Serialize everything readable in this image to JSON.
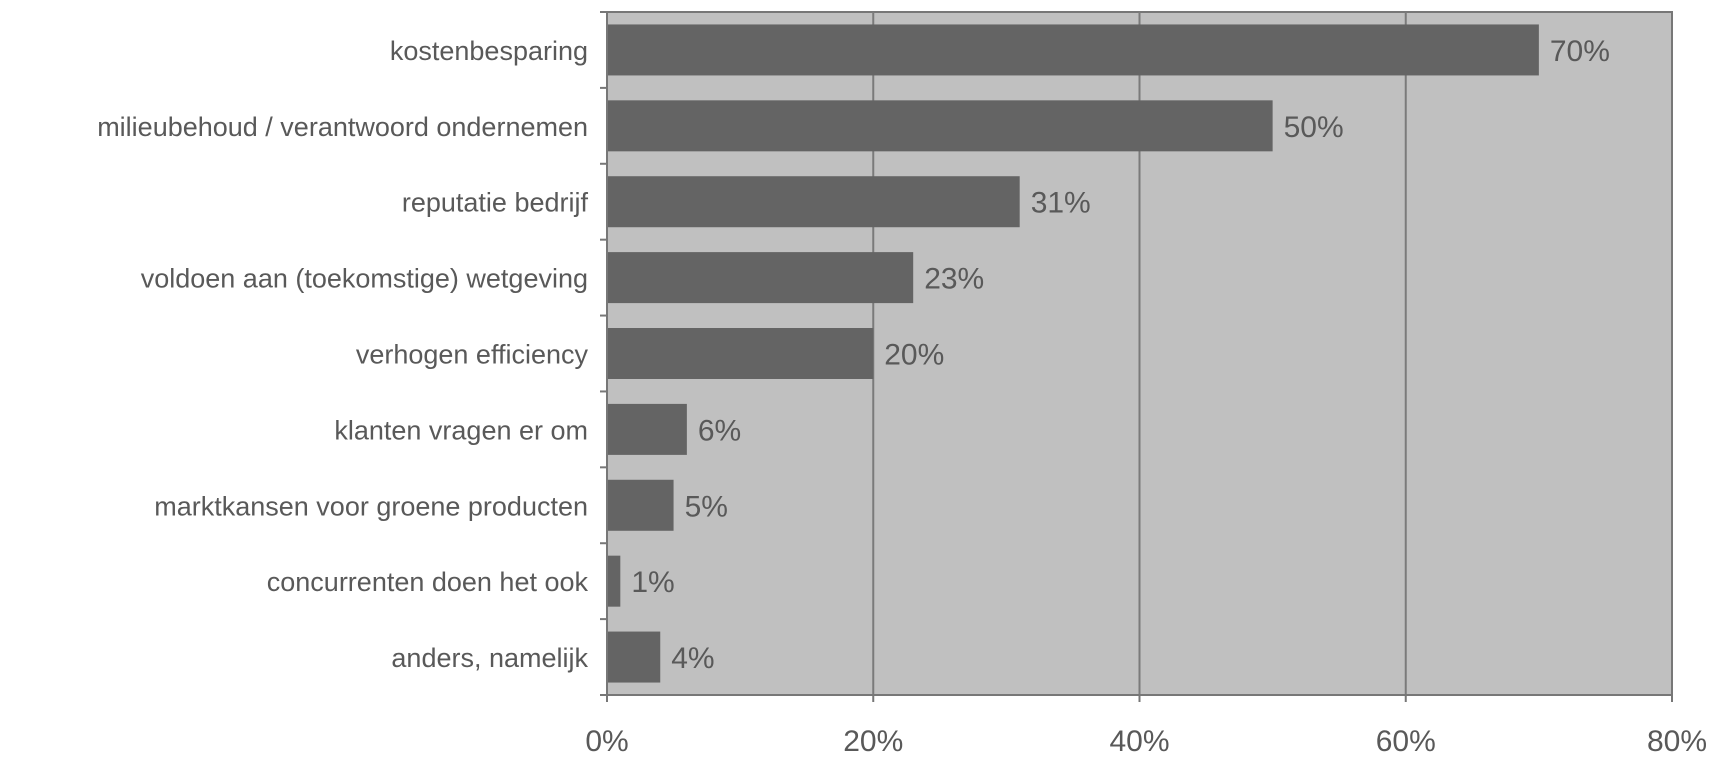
{
  "chart_data": {
    "type": "bar",
    "orientation": "horizontal",
    "categories": [
      "kostenbesparing",
      "milieubehoud / verantwoord ondernemen",
      "reputatie bedrijf",
      "voldoen aan (toekomstige) wetgeving",
      "verhogen efficiency",
      "klanten vragen er om",
      "marktkansen voor groene producten",
      "concurrenten doen het ook",
      "anders, namelijk"
    ],
    "values": [
      70,
      50,
      31,
      23,
      20,
      6,
      5,
      1,
      4
    ],
    "data_labels": [
      "70%",
      "50%",
      "31%",
      "23%",
      "20%",
      "6%",
      "5%",
      "1%",
      "4%"
    ],
    "xlim": [
      0,
      80
    ],
    "x_ticks": [
      0,
      20,
      40,
      60,
      80
    ],
    "x_tick_labels": [
      "0%",
      "20%",
      "40%",
      "60%",
      "80%"
    ],
    "grid": true,
    "legend": false,
    "colors": {
      "bar": "#646464",
      "plot_background": "#c0c0c0",
      "grid": "#7a7a7a",
      "axis": "#777777",
      "text": "#595959"
    }
  }
}
